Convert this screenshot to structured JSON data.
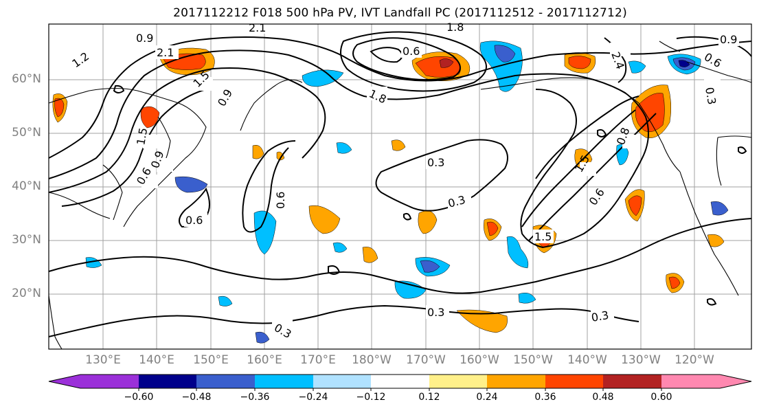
{
  "title": "2017112212 F018 500 hPa PV, IVT Landfall PC (2017112512 - 2017112712)",
  "map": {
    "lat_labels": [
      "60°N",
      "50°N",
      "40°N",
      "30°N",
      "20°N"
    ],
    "lon_labels": [
      "130°E",
      "140°E",
      "150°E",
      "160°E",
      "170°E",
      "180°W",
      "170°W",
      "160°W",
      "150°W",
      "140°W",
      "130°W",
      "120°W"
    ],
    "contour_labels": [
      "0.9",
      "2.1",
      "1.8",
      "1.2",
      "2.1",
      "0.6",
      "2.4",
      "0.9",
      "0.6",
      "0.3",
      "1.5",
      "0.9",
      "1.8",
      "0.9",
      "0.3",
      "0.6",
      "0.3",
      "0.6",
      "1.5",
      "0.6",
      "0.6",
      "1.5",
      "0.3",
      "0.3",
      "0.3",
      "1.5",
      "0.8"
    ]
  },
  "colorbar": {
    "ticks": [
      "−0.60",
      "−0.48",
      "−0.36",
      "−0.24",
      "−0.12",
      "0.12",
      "0.24",
      "0.36",
      "0.48",
      "0.60"
    ],
    "colors": [
      "#9b30d9",
      "#00008b",
      "#3a5fcd",
      "#00bfff",
      "#b0e2ff",
      "#ffffff",
      "#fff08a",
      "#ffa500",
      "#ff4500",
      "#b22222",
      "#ff88b0"
    ]
  }
}
